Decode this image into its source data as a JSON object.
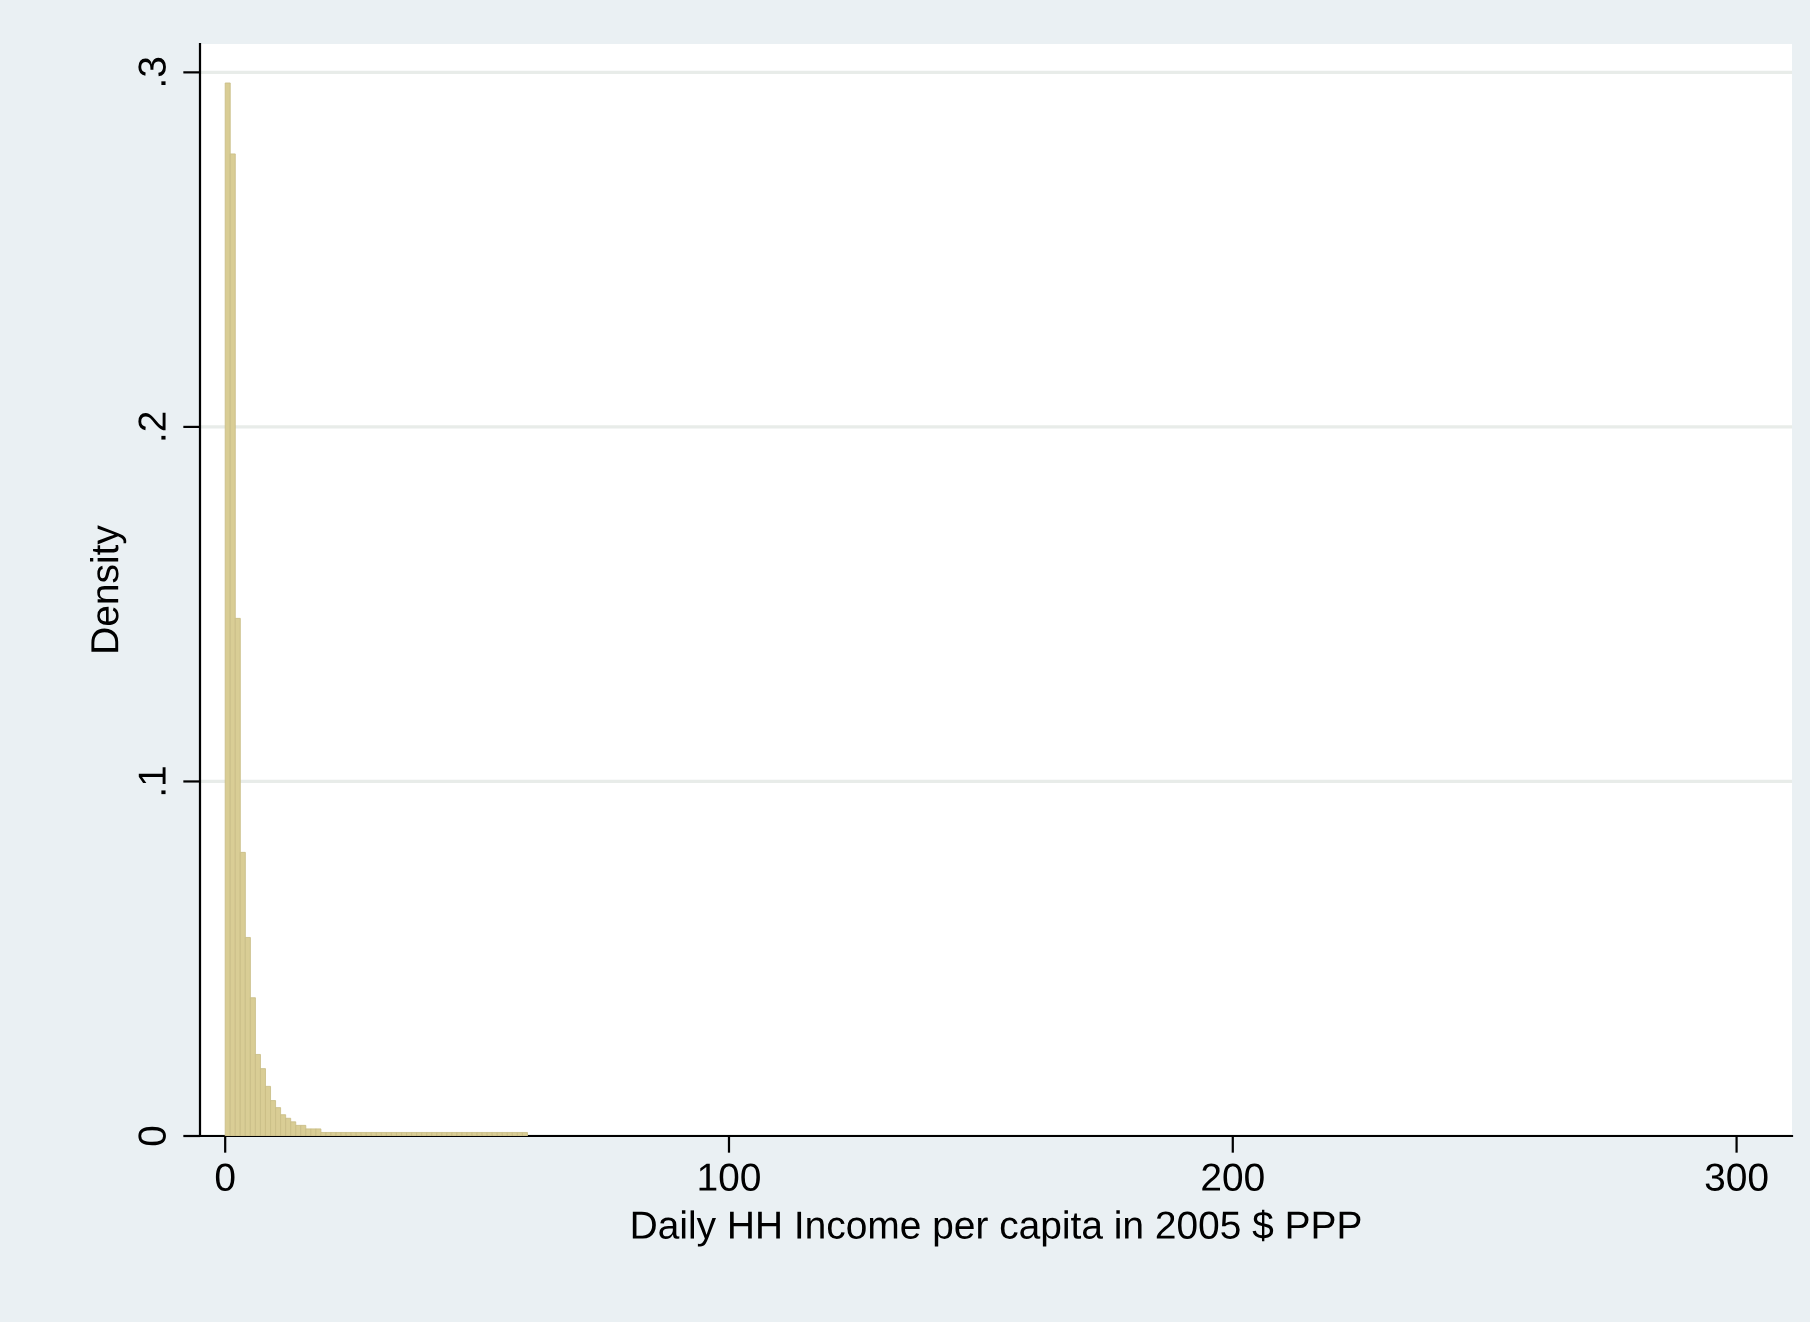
{
  "chart_data": {
    "type": "histogram",
    "xlabel": "Daily HH Income per capita in 2005 $ PPP",
    "ylabel": "Density",
    "bins": [
      0,
      1,
      2,
      3,
      4,
      5,
      6,
      7,
      8,
      9,
      10,
      11,
      12,
      13,
      14,
      15,
      16,
      17,
      18,
      19,
      20,
      21,
      22,
      23,
      24,
      25,
      26,
      27,
      28,
      29,
      30,
      31,
      32,
      33,
      34,
      35,
      36,
      37,
      38,
      39,
      40,
      41,
      42,
      43,
      44,
      45,
      46,
      47,
      48,
      49,
      50,
      51,
      52,
      53,
      54,
      55,
      56,
      57,
      58,
      59,
      60
    ],
    "values": [
      0.297,
      0.277,
      0.146,
      0.08,
      0.056,
      0.039,
      0.023,
      0.019,
      0.014,
      0.01,
      0.008,
      0.006,
      0.005,
      0.004,
      0.003,
      0.003,
      0.002,
      0.002,
      0.002,
      0.001,
      0.001,
      0.001,
      0.001,
      0.001,
      0.001,
      0.001,
      0.001,
      0.001,
      0.001,
      0.001,
      0.001,
      0.001,
      0.001,
      0.001,
      0.001,
      0.001,
      0.001,
      0.001,
      0.001,
      0.001,
      0.001,
      0.001,
      0.001,
      0.001,
      0.001,
      0.001,
      0.001,
      0.001,
      0.001,
      0.001,
      0.001,
      0.001,
      0.001,
      0.001,
      0.001,
      0.001,
      0.001,
      0.001,
      0.001,
      0.001
    ],
    "color": "#d9cd95",
    "xlim": [
      -5,
      311
    ],
    "xticks": [
      0,
      100,
      200,
      300
    ],
    "ylim": [
      0,
      0.308
    ],
    "yticks": [
      {
        "value": 0,
        "label": "0"
      },
      {
        "value": 0.1,
        "label": ".1"
      },
      {
        "value": 0.2,
        "label": ".2"
      },
      {
        "value": 0.3,
        "label": ".3"
      }
    ],
    "grid": "y"
  }
}
